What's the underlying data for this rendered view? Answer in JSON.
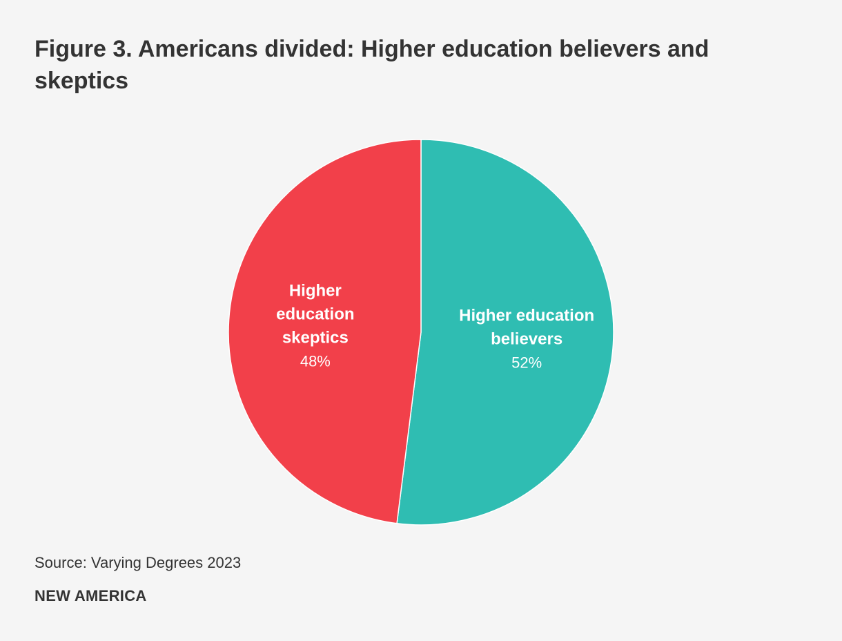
{
  "title": "Figure 3. Americans divided: Higher education believers and skeptics",
  "source": "Source: Varying Degrees 2023",
  "brand": "NEW AMERICA",
  "chart_data": {
    "type": "pie",
    "title": "Figure 3. Americans divided: Higher education believers and skeptics",
    "unit": "%",
    "start": "12 o'clock, clockwise",
    "slices": [
      {
        "name": "Higher education believers",
        "label_lines": [
          "Higher education",
          "believers"
        ],
        "value": 52,
        "value_label": "52%",
        "color": "#2fbdb2"
      },
      {
        "name": "Higher education skeptics",
        "label_lines": [
          "Higher",
          "education",
          "skeptics"
        ],
        "value": 48,
        "value_label": "48%",
        "color": "#f2404a"
      }
    ]
  }
}
